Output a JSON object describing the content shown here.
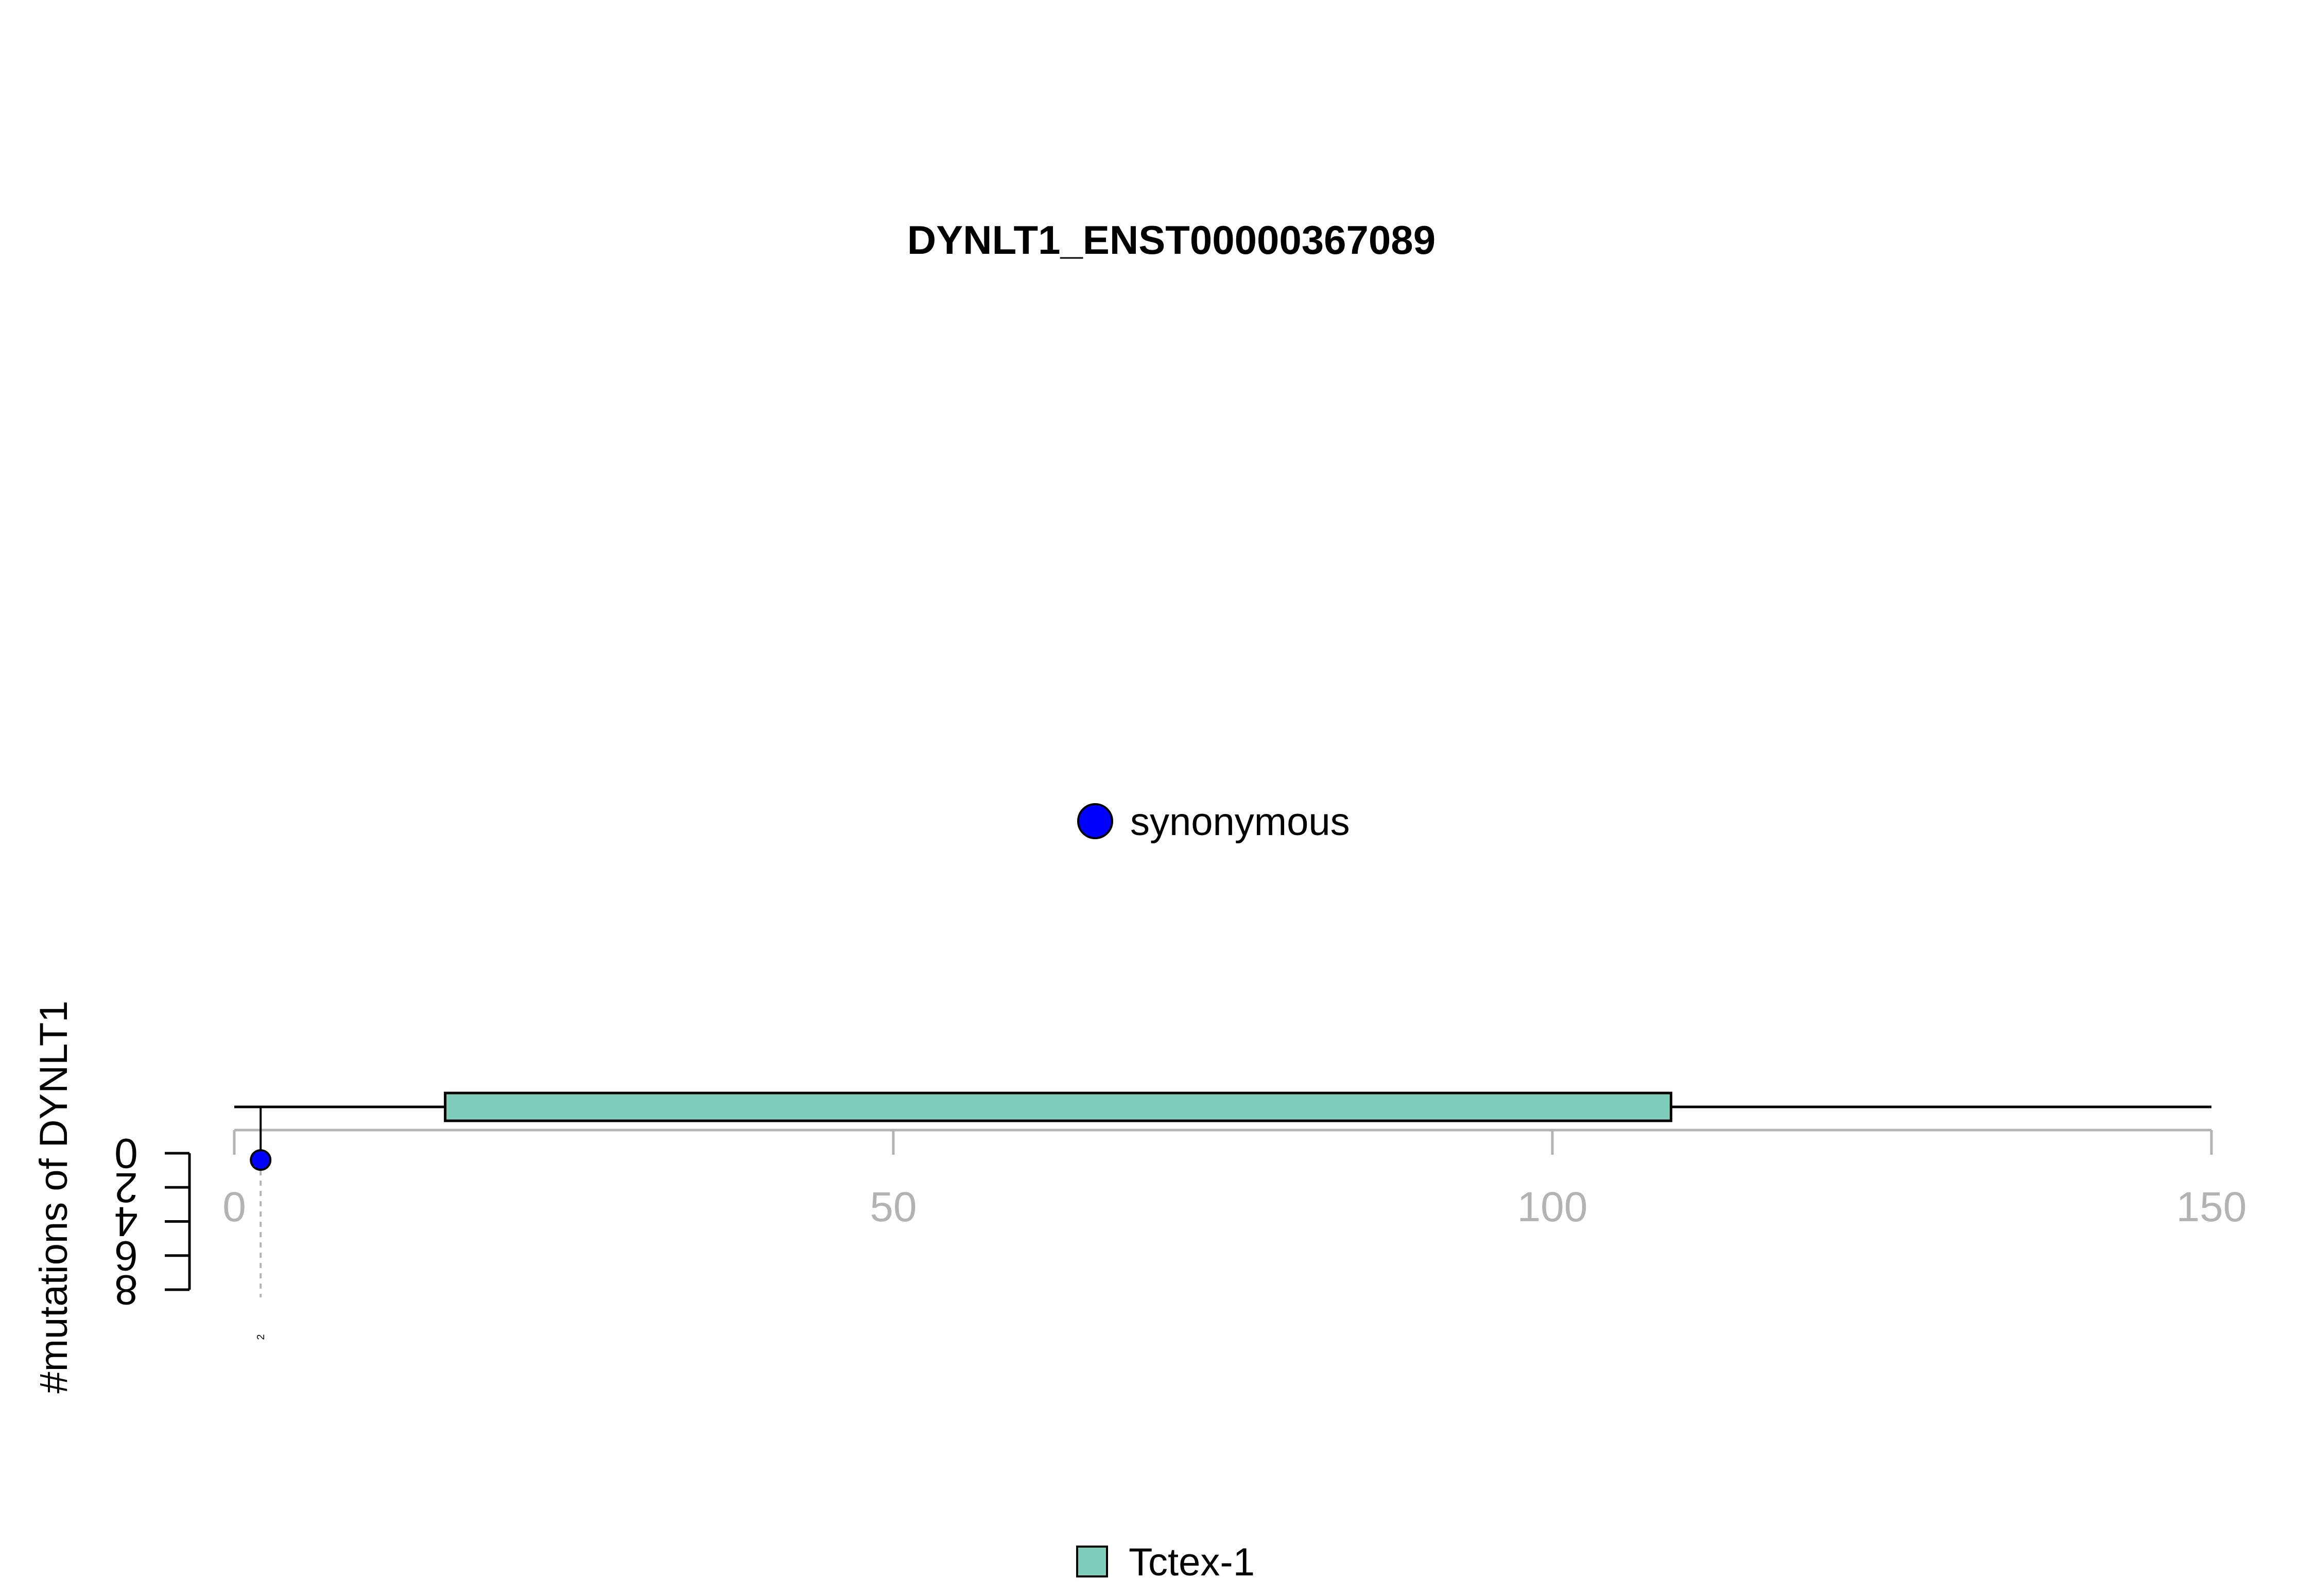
{
  "chart_data": {
    "type": "lollipop",
    "title": "DYNLT1_ENST00000367089",
    "ylabel": "#mutations of DYNLT1",
    "protein_length": 151,
    "xlim": [
      0,
      150
    ],
    "x_ticks": [
      0,
      50,
      100,
      150
    ],
    "ylim": [
      0,
      8
    ],
    "y_ticks": [
      0,
      2,
      4,
      6,
      8
    ],
    "mutation_legend": [
      {
        "label": "synonymous",
        "color": "#0000ff"
      }
    ],
    "domain_legend": [
      {
        "label": "Tctex-1",
        "color": "#7fcdbb"
      }
    ],
    "domains": [
      {
        "name": "Tctex-1",
        "start": 16,
        "end": 109,
        "color": "#7fcdbb"
      }
    ],
    "mutations": [
      {
        "position": 2,
        "count": 1,
        "type": "synonymous",
        "color": "#0000ff",
        "label": "2"
      }
    ]
  }
}
